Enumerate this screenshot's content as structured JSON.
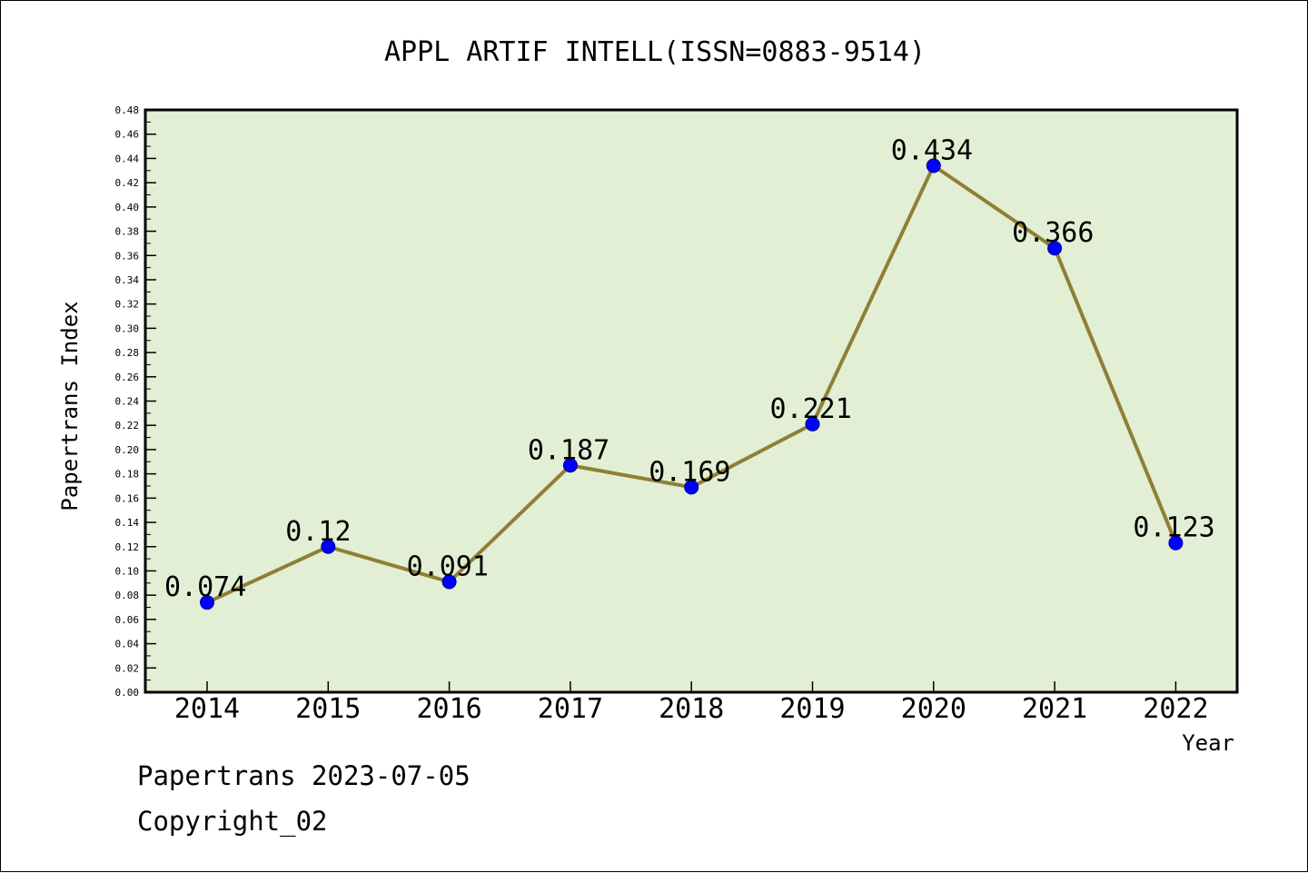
{
  "chart_data": {
    "type": "line",
    "title": "APPL ARTIF INTELL(ISSN=0883-9514)",
    "xlabel": "Year",
    "ylabel": "Papertrans Index",
    "categories": [
      "2014",
      "2015",
      "2016",
      "2017",
      "2018",
      "2019",
      "2020",
      "2021",
      "2022"
    ],
    "values": [
      0.074,
      0.12,
      0.091,
      0.187,
      0.169,
      0.221,
      0.434,
      0.366,
      0.123
    ],
    "data_labels": [
      "0.074",
      "0.12",
      "0.091",
      "0.187",
      "0.169",
      "0.221",
      "0.434",
      "0.366",
      "0.123"
    ],
    "ylim": [
      0,
      0.48
    ],
    "y_ticks": [
      "0.00",
      "0.02",
      "0.04",
      "0.06",
      "0.08",
      "0.10",
      "0.12",
      "0.14",
      "0.16",
      "0.18",
      "0.20",
      "0.22",
      "0.24",
      "0.26",
      "0.28",
      "0.30",
      "0.32",
      "0.34",
      "0.36",
      "0.38",
      "0.40",
      "0.42",
      "0.44",
      "0.46",
      "0.48"
    ],
    "grid": false,
    "legend": "none",
    "colors": {
      "plot_background": "#e2efd5",
      "line": "#8f7f35",
      "marker": "#0000ff"
    }
  },
  "footer": {
    "line1": "Papertrans 2023-07-05",
    "line2": "Copyright_02"
  }
}
